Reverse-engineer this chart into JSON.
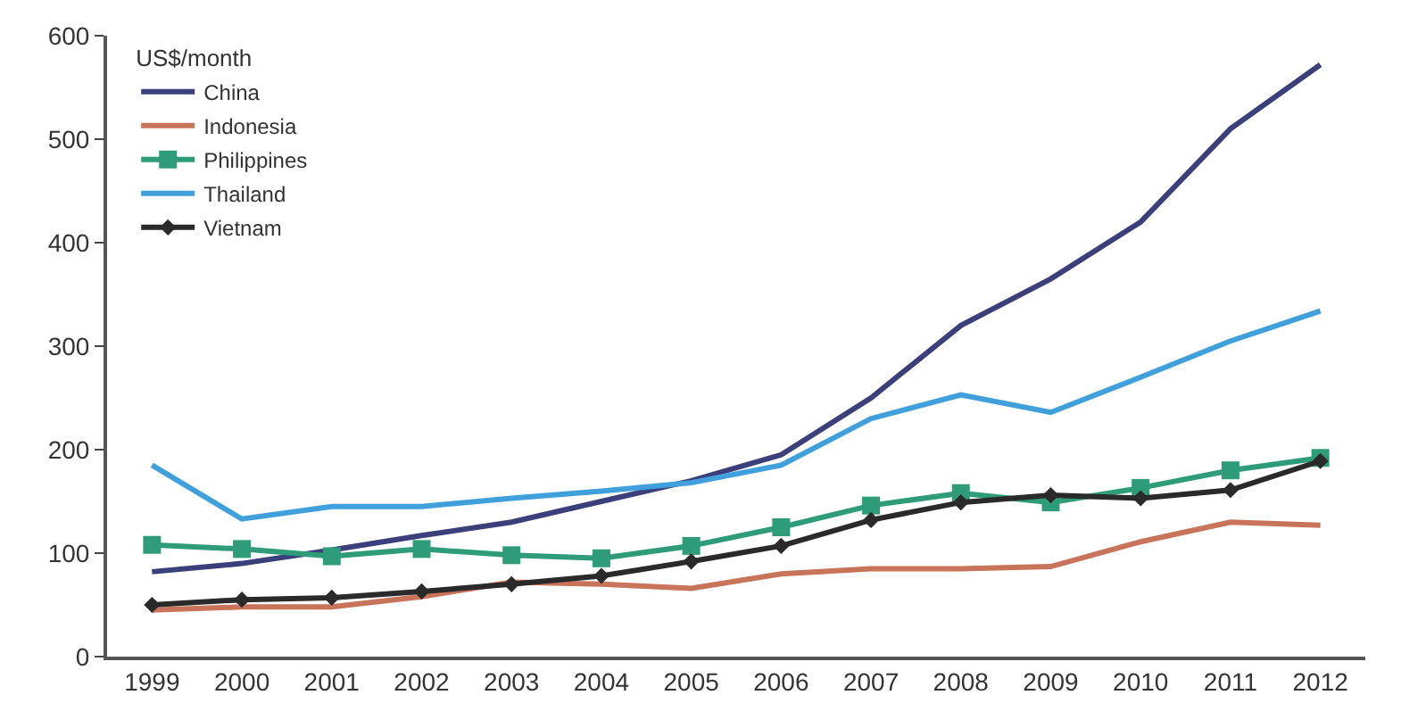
{
  "chart_data": {
    "type": "line",
    "legend_title": "US$/month",
    "categories": [
      "1999",
      "2000",
      "2001",
      "2002",
      "2003",
      "2004",
      "2005",
      "2006",
      "2007",
      "2008",
      "2009",
      "2010",
      "2011",
      "2012"
    ],
    "series": [
      {
        "name": "China",
        "color": "#3b3f7a",
        "marker": "none",
        "values": [
          82,
          90,
          103,
          117,
          130,
          150,
          170,
          195,
          250,
          320,
          365,
          420,
          510,
          572
        ]
      },
      {
        "name": "Indonesia",
        "color": "#c8745a",
        "marker": "none",
        "values": [
          45,
          48,
          48,
          58,
          72,
          70,
          66,
          80,
          85,
          85,
          87,
          111,
          130,
          127
        ]
      },
      {
        "name": "Philippines",
        "color": "#2e9c78",
        "marker": "square",
        "values": [
          108,
          104,
          97,
          104,
          98,
          95,
          107,
          125,
          146,
          158,
          149,
          163,
          180,
          192
        ]
      },
      {
        "name": "Thailand",
        "color": "#3fa0dc",
        "marker": "none",
        "values": [
          185,
          133,
          145,
          145,
          153,
          160,
          168,
          185,
          230,
          253,
          236,
          270,
          305,
          334
        ]
      },
      {
        "name": "Vietnam",
        "color": "#2a2a2a",
        "marker": "diamond",
        "values": [
          50,
          55,
          57,
          63,
          70,
          78,
          92,
          107,
          132,
          149,
          156,
          153,
          161,
          189
        ]
      }
    ],
    "ylim": [
      0,
      600
    ],
    "yticks": [
      0,
      100,
      200,
      300,
      400,
      500,
      600
    ],
    "legend": "top left",
    "line_style": "solid"
  }
}
